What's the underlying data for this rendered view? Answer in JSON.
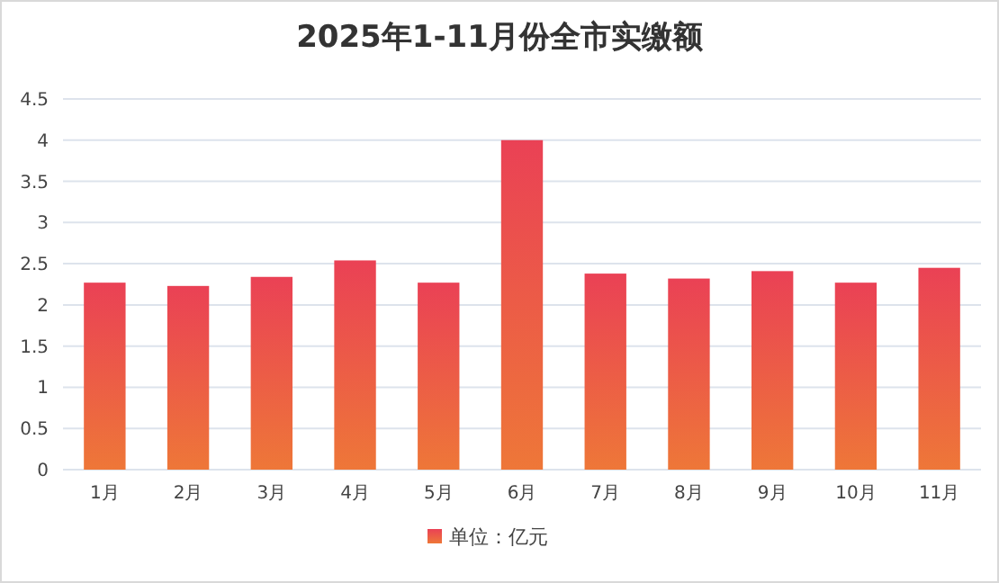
{
  "chart_data": {
    "type": "bar",
    "title": "2025年1-11月份全市实缴额",
    "categories": [
      "1月",
      "2月",
      "3月",
      "4月",
      "5月",
      "6月",
      "7月",
      "8月",
      "9月",
      "10月",
      "11月"
    ],
    "series": [
      {
        "name": "单位：亿元",
        "color": "#ec5a4a",
        "values": [
          2.27,
          2.23,
          2.34,
          2.54,
          2.27,
          4.0,
          2.38,
          2.32,
          2.41,
          2.27,
          2.45
        ]
      }
    ],
    "ylim": [
      0,
      4.5
    ],
    "yticks": [
      0,
      0.5,
      1,
      1.5,
      2,
      2.5,
      3,
      3.5,
      4,
      4.5
    ],
    "grid": "y",
    "legend": "bottom"
  }
}
